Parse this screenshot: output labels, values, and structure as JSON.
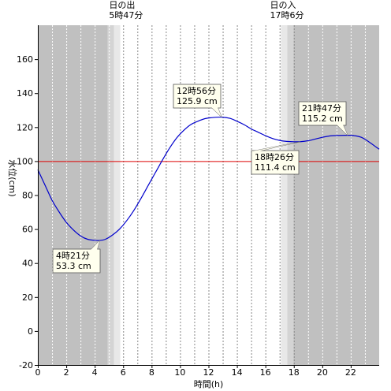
{
  "chart_data": {
    "type": "line",
    "xlabel": "時間(h)",
    "ylabel": "水位(cm)",
    "xlim": [
      0,
      24
    ],
    "ylim": [
      -20,
      180
    ],
    "x_ticks": [
      0,
      2,
      4,
      6,
      8,
      10,
      12,
      14,
      16,
      18,
      20,
      22
    ],
    "x_tick_labels": [
      "0",
      "2",
      "4",
      "6",
      "8",
      "10",
      "12",
      "14",
      "16",
      "18",
      "20",
      "22"
    ],
    "y_ticks": [
      -20,
      0,
      20,
      40,
      60,
      80,
      100,
      120,
      140,
      160
    ],
    "y_tick_labels": [
      "-20",
      "0",
      "20",
      "40",
      "60",
      "80",
      "100",
      "120",
      "140",
      "160"
    ],
    "grid": {
      "vertical_dotted_every_hour": true
    },
    "reference_line": {
      "y": 100,
      "color": "#dd0000"
    },
    "sunrise": {
      "hour": 5.7833,
      "label": "日の出",
      "time_label": "5時47分"
    },
    "sunset": {
      "hour": 17.1,
      "label": "日の入",
      "time_label": "17時6分"
    },
    "series": [
      {
        "color": "#0000cc",
        "points": [
          [
            0,
            95
          ],
          [
            0.5,
            86
          ],
          [
            1,
            77
          ],
          [
            1.5,
            70
          ],
          [
            2,
            64
          ],
          [
            2.5,
            59.5
          ],
          [
            3,
            56
          ],
          [
            3.5,
            54
          ],
          [
            4,
            53.4
          ],
          [
            4.35,
            53.3
          ],
          [
            4.75,
            54
          ],
          [
            5.25,
            56.5
          ],
          [
            5.75,
            60
          ],
          [
            6.25,
            65
          ],
          [
            6.75,
            71
          ],
          [
            7.25,
            78
          ],
          [
            7.75,
            85.5
          ],
          [
            8.25,
            93
          ],
          [
            8.75,
            100.5
          ],
          [
            9.25,
            107.5
          ],
          [
            9.75,
            113.5
          ],
          [
            10.25,
            118
          ],
          [
            10.75,
            121.5
          ],
          [
            11.25,
            123.5
          ],
          [
            11.75,
            125
          ],
          [
            12.25,
            125.6
          ],
          [
            12.93,
            125.9
          ],
          [
            13.5,
            125.2
          ],
          [
            14,
            123.5
          ],
          [
            14.5,
            121.5
          ],
          [
            15,
            119
          ],
          [
            15.5,
            117
          ],
          [
            16,
            115
          ],
          [
            16.5,
            113.3
          ],
          [
            17,
            112.2
          ],
          [
            17.5,
            111.6
          ],
          [
            18,
            111.4
          ],
          [
            18.43,
            111.4
          ],
          [
            19,
            112
          ],
          [
            19.5,
            113
          ],
          [
            20,
            114
          ],
          [
            20.5,
            114.8
          ],
          [
            21,
            115.1
          ],
          [
            21.78,
            115.2
          ],
          [
            22.25,
            115
          ],
          [
            22.75,
            114
          ],
          [
            23.25,
            111.5
          ],
          [
            23.75,
            108.5
          ]
        ]
      }
    ],
    "annotations": [
      {
        "x": 4.35,
        "y": 53.3,
        "time": "4時21分",
        "value": "53.3 cm"
      },
      {
        "x": 12.93,
        "y": 125.9,
        "time": "12時56分",
        "value": "125.9 cm"
      },
      {
        "x": 18.43,
        "y": 111.4,
        "time": "18時26分",
        "value": "111.4 cm"
      },
      {
        "x": 21.78,
        "y": 115.2,
        "time": "21時47分",
        "value": "115.2 cm"
      }
    ]
  }
}
